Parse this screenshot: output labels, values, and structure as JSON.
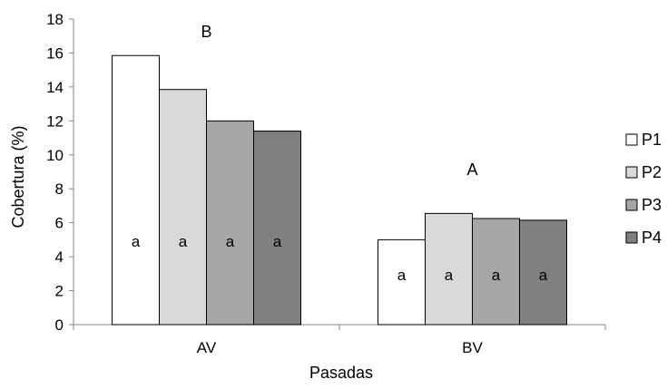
{
  "chart_data": {
    "type": "bar",
    "title": "",
    "xlabel": "Pasadas",
    "ylabel": "Cobertura (%)",
    "ylim": [
      0,
      18
    ],
    "yticks": [
      0,
      2,
      4,
      6,
      8,
      10,
      12,
      14,
      16,
      18
    ],
    "categories": [
      "AV",
      "BV"
    ],
    "group_labels": [
      "B",
      "A"
    ],
    "series": [
      {
        "name": "P1",
        "values": [
          15.85,
          5.0
        ],
        "color": "#ffffff",
        "bar_labels": [
          "a",
          "a"
        ]
      },
      {
        "name": "P2",
        "values": [
          13.85,
          6.55
        ],
        "color": "#d9d9d9",
        "bar_labels": [
          "a",
          "a"
        ]
      },
      {
        "name": "P3",
        "values": [
          12.0,
          6.25
        ],
        "color": "#a6a6a6",
        "bar_labels": [
          "a",
          "a"
        ]
      },
      {
        "name": "P4",
        "values": [
          11.4,
          6.15
        ],
        "color": "#808080",
        "bar_labels": [
          "a",
          "a"
        ]
      }
    ],
    "grid": false,
    "legend_position": "right"
  }
}
